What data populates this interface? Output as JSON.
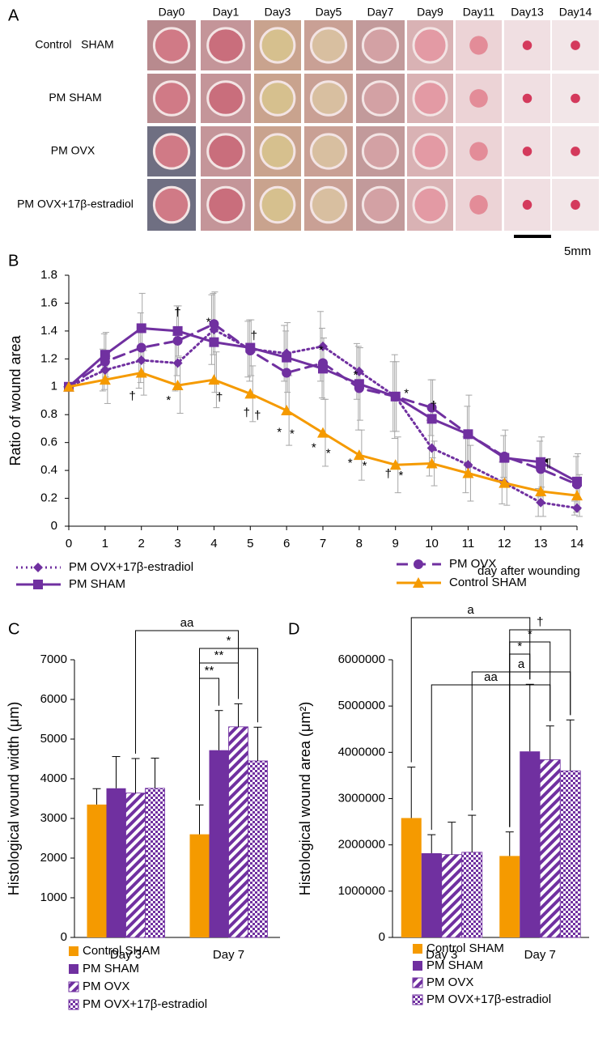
{
  "figure_a": {
    "panel": "A",
    "days": [
      "Day0",
      "Day1",
      "Day3",
      "Day5",
      "Day7",
      "Day9",
      "Day11",
      "Day13",
      "Day14"
    ],
    "groups": [
      "Control   SHAM",
      "PM SHAM",
      "PM OVX",
      "PM OVX+17β-estradiol"
    ],
    "scale_bar": "5mm"
  },
  "chart_data": [
    {
      "type": "line",
      "panel": "B",
      "ylabel": "Ratio of wound area",
      "xlabel": "day after wounding",
      "x": [
        0,
        1,
        2,
        3,
        4,
        5,
        6,
        7,
        8,
        9,
        10,
        11,
        12,
        13,
        14
      ],
      "xlim": [
        0,
        14
      ],
      "xticks": [
        0,
        1,
        2,
        3,
        4,
        5,
        6,
        7,
        8,
        9,
        10,
        11,
        12,
        13,
        14
      ],
      "ylim": [
        0,
        1.8
      ],
      "yticks": [
        0,
        0.2,
        0.4,
        0.6,
        0.8,
        1,
        1.2,
        1.4,
        1.6,
        1.8
      ],
      "series": [
        {
          "name": "PM OVX+17β-estradiol",
          "color": "#7030a0",
          "dash": "dotted",
          "marker": "diamond",
          "values": [
            1,
            1.12,
            1.19,
            1.17,
            1.41,
            1.27,
            1.24,
            1.29,
            1.11,
            0.93,
            0.56,
            0.44,
            0.31,
            0.17,
            0.13
          ],
          "errors": [
            0,
            0.15,
            0.2,
            0.2,
            0.25,
            0.2,
            0.2,
            0.25,
            0.2,
            0.25,
            0.2,
            0.2,
            0.15,
            0.1,
            0.05
          ]
        },
        {
          "name": "PM OVX",
          "color": "#7030a0",
          "dash": "dashed",
          "marker": "circle",
          "values": [
            1,
            1.18,
            1.28,
            1.33,
            1.45,
            1.26,
            1.1,
            1.17,
            0.99,
            0.93,
            0.85,
            0.66,
            0.5,
            0.41,
            0.3
          ],
          "errors": [
            0,
            0.2,
            0.25,
            0.25,
            0.22,
            0.22,
            0.3,
            0.25,
            0.3,
            0.3,
            0.2,
            0.2,
            0.15,
            0.2,
            0.2
          ]
        },
        {
          "name": "PM SHAM",
          "color": "#7030a0",
          "dash": "solid",
          "marker": "square",
          "values": [
            1,
            1.23,
            1.42,
            1.4,
            1.32,
            1.28,
            1.21,
            1.13,
            1.02,
            0.93,
            0.77,
            0.66,
            0.49,
            0.46,
            0.32
          ],
          "errors": [
            0,
            0.16,
            0.25,
            0.18,
            0.36,
            0.2,
            0.25,
            0.22,
            0.26,
            0.25,
            0.28,
            0.28,
            0.2,
            0.18,
            0.2
          ]
        },
        {
          "name": "Control SHAM",
          "color": "#f59a00",
          "dash": "solid",
          "marker": "triangle",
          "values": [
            1,
            1.05,
            1.1,
            1.01,
            1.05,
            0.95,
            0.83,
            0.67,
            0.51,
            0.44,
            0.45,
            0.38,
            0.31,
            0.25,
            0.22
          ],
          "errors": [
            0,
            0.17,
            0.16,
            0.2,
            0.2,
            0.2,
            0.25,
            0.24,
            0.18,
            0.2,
            0.16,
            0.2,
            0.16,
            0.18,
            0.15
          ]
        }
      ],
      "annotations": [
        {
          "text": "†",
          "color": "#000000",
          "x": 1.75,
          "y": 0.93
        },
        {
          "text": "*",
          "color": "#000000",
          "x": 2.75,
          "y": 0.9
        },
        {
          "text": "†",
          "color": "#e00000",
          "x": 3,
          "y": 1.53
        },
        {
          "text": "*",
          "color": "#e00000",
          "x": 3.85,
          "y": 1.46
        },
        {
          "text": "†",
          "color": "#00b050",
          "x": 4.15,
          "y": 0.92
        },
        {
          "text": "†",
          "color": "#e00000",
          "x": 5.1,
          "y": 1.36
        },
        {
          "text": "†",
          "color": "#000000",
          "x": 4.9,
          "y": 0.81
        },
        {
          "text": "†",
          "color": "#00b050",
          "x": 5.2,
          "y": 0.79
        },
        {
          "text": "*",
          "color": "#000000",
          "x": 5.8,
          "y": 0.67
        },
        {
          "text": "*",
          "color": "#00b050",
          "x": 6.15,
          "y": 0.66
        },
        {
          "text": "*",
          "color": "#e00000",
          "x": 6.95,
          "y": 1.26
        },
        {
          "text": "*",
          "color": "#000000",
          "x": 6.75,
          "y": 0.56
        },
        {
          "text": "*",
          "color": "#00b050",
          "x": 7.15,
          "y": 0.52
        },
        {
          "text": "*",
          "color": "#e00000",
          "x": 7.9,
          "y": 1.08
        },
        {
          "text": "*",
          "color": "#000000",
          "x": 7.75,
          "y": 0.45
        },
        {
          "text": "*",
          "color": "#00b050",
          "x": 8.15,
          "y": 0.43
        },
        {
          "text": "*",
          "color": "#e00000",
          "x": 9.3,
          "y": 0.95
        },
        {
          "text": "†",
          "color": "#000000",
          "x": 8.8,
          "y": 0.37
        },
        {
          "text": "*",
          "color": "#00b050",
          "x": 9.15,
          "y": 0.36
        },
        {
          "text": "†",
          "color": "#e00000",
          "x": 10.05,
          "y": 0.86
        },
        {
          "text": "¶",
          "color": "#00b050",
          "x": 13.2,
          "y": 0.45
        }
      ]
    },
    {
      "type": "bar",
      "panel": "C",
      "ylabel": "Histological wound width (μm)",
      "categories": [
        "Day 3",
        "Day 7"
      ],
      "ylim": [
        0,
        7000
      ],
      "yticks": [
        0,
        1000,
        2000,
        3000,
        4000,
        5000,
        6000,
        7000
      ],
      "series": [
        {
          "name": "Control SHAM",
          "color": "#f59a00",
          "pattern": "solid",
          "values": [
            3350,
            2600
          ],
          "errors": [
            400,
            740
          ]
        },
        {
          "name": "PM SHAM",
          "color": "#7030a0",
          "pattern": "solid",
          "values": [
            3760,
            4720
          ],
          "errors": [
            800,
            1000
          ]
        },
        {
          "name": "PM OVX",
          "color": "#7030a0",
          "pattern": "diagonal",
          "values": [
            3640,
            5310
          ],
          "errors": [
            870,
            580
          ]
        },
        {
          "name": "PM OVX+17β-estradiol",
          "color": "#7030a0",
          "pattern": "checker",
          "values": [
            3760,
            4450
          ],
          "errors": [
            760,
            850
          ]
        }
      ],
      "annotations": [
        {
          "text": "aa",
          "color": "#000000"
        },
        {
          "text": "*",
          "color": "#00b050"
        },
        {
          "text": "**",
          "color": "#e00000"
        },
        {
          "text": "**",
          "color": "#000000"
        }
      ]
    },
    {
      "type": "bar",
      "panel": "D",
      "ylabel": "Histological wound area (μm²)",
      "categories": [
        "Day 3",
        "Day 7"
      ],
      "ylim": [
        0,
        6000000
      ],
      "yticks": [
        0,
        1000000,
        2000000,
        3000000,
        4000000,
        5000000,
        6000000
      ],
      "series": [
        {
          "name": "Control SHAM",
          "color": "#f59a00",
          "pattern": "solid",
          "values": [
            2580000,
            1760000
          ],
          "errors": [
            1100000,
            520000
          ]
        },
        {
          "name": "PM SHAM",
          "color": "#7030a0",
          "pattern": "solid",
          "values": [
            1820000,
            4020000
          ],
          "errors": [
            400000,
            1450000
          ]
        },
        {
          "name": "PM OVX",
          "color": "#7030a0",
          "pattern": "diagonal",
          "values": [
            1790000,
            3840000
          ],
          "errors": [
            700000,
            730000
          ]
        },
        {
          "name": "PM OVX+17β-estradiol",
          "color": "#7030a0",
          "pattern": "checker",
          "values": [
            1840000,
            3600000
          ],
          "errors": [
            800000,
            1100000
          ]
        }
      ],
      "annotations": [
        {
          "text": "a",
          "color": "#000000"
        },
        {
          "text": "†",
          "color": "#00b050"
        },
        {
          "text": "*",
          "color": "#e00000"
        },
        {
          "text": "*",
          "color": "#000000"
        },
        {
          "text": "a",
          "color": "#000000"
        },
        {
          "text": "aa",
          "color": "#000000"
        }
      ]
    }
  ]
}
